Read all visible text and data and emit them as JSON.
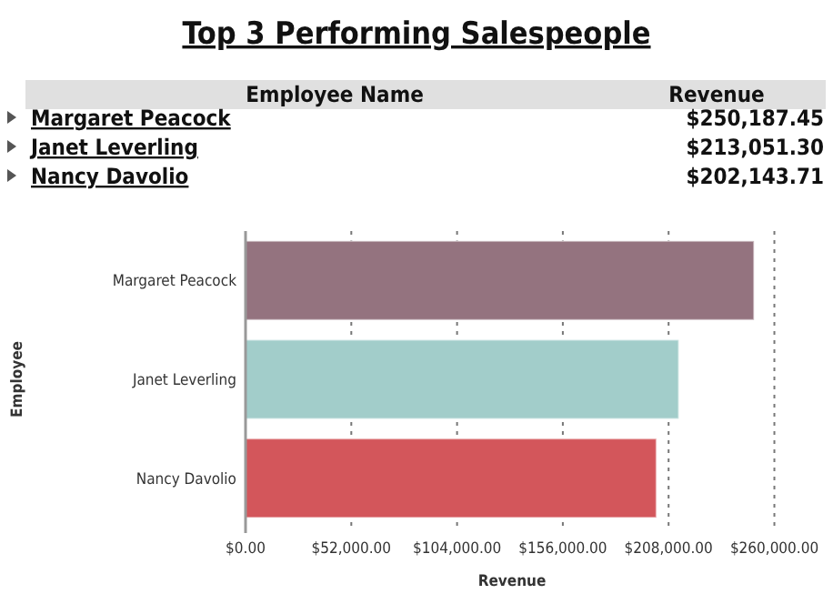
{
  "chart_data": [
    {
      "type": "other",
      "title": "Top 3 Performing Salespeople",
      "annotations": [
        "Employee Name",
        "Revenue"
      ],
      "categories": [
        "Margaret Peacock",
        "Janet Leverling",
        "Nancy Davolio"
      ],
      "values": [
        250187.45,
        213051.3,
        202143.71
      ],
      "value_labels": [
        "$250,187.45",
        "$213,051.30",
        "$202,143.71"
      ]
    },
    {
      "type": "bar",
      "orientation": "horizontal",
      "xlabel": "Revenue",
      "ylabel": "Employee",
      "categories": [
        "Margaret Peacock",
        "Janet Leverling",
        "Nancy Davolio"
      ],
      "values": [
        250000,
        213000,
        202000
      ],
      "colors": [
        "#94737f",
        "#a2cdca",
        "#d3565b"
      ],
      "xlim": [
        0,
        262000
      ],
      "xticks": [
        {
          "value": 0,
          "label": "$0.00"
        },
        {
          "value": 52000,
          "label": "$52,000.00"
        },
        {
          "value": 104000,
          "label": "$104,000.00"
        },
        {
          "value": 156000,
          "label": "$156,000.00"
        },
        {
          "value": 208000,
          "label": "$208,000.00"
        },
        {
          "value": 260000,
          "label": "$260,000.00"
        }
      ],
      "grid": "x"
    }
  ]
}
